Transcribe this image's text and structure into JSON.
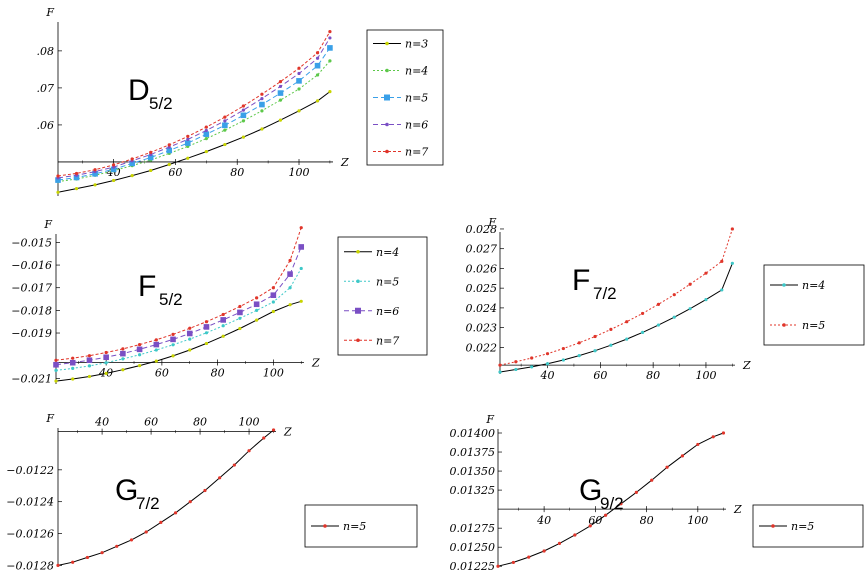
{
  "chart_data": [
    {
      "type": "line",
      "id": "d52",
      "panel_label": "D",
      "panel_sub": "5/2",
      "xlabel": "Z",
      "ylabel": "F",
      "xlim": [
        22,
        111
      ],
      "ylim": [
        0.0408,
        0.0905
      ],
      "baseline": 0.05,
      "x_ticks": [
        40,
        60,
        80,
        100
      ],
      "y_ticks": [
        0.06,
        0.07,
        0.08
      ],
      "y_tick_labels": [
        ".06",
        ".07",
        ".08"
      ],
      "x": [
        22,
        28,
        34,
        40,
        46,
        52,
        58,
        64,
        70,
        76,
        82,
        88,
        94,
        100,
        106,
        110
      ],
      "series": [
        {
          "name": "n=3",
          "color": "#000000",
          "marker_color": "#c8d400",
          "dash": "",
          "marker": "dot",
          "values": [
            0.0418,
            0.0428,
            0.0438,
            0.045,
            0.0463,
            0.0477,
            0.0493,
            0.051,
            0.0528,
            0.0547,
            0.0567,
            0.0589,
            0.0613,
            0.0638,
            0.0665,
            0.069
          ]
        },
        {
          "name": "n=4",
          "color": "#5dc84a",
          "marker_color": "#5dc84a",
          "dash": "2,2",
          "marker": "dot",
          "values": [
            0.0447,
            0.0454,
            0.0464,
            0.0476,
            0.049,
            0.0505,
            0.0523,
            0.0542,
            0.0563,
            0.0586,
            0.0611,
            0.0638,
            0.0667,
            0.0697,
            0.0735,
            0.0773
          ]
        },
        {
          "name": "n=5",
          "color": "#3aa0e8",
          "marker_color": "#3aa0e8",
          "dash": "5,3",
          "marker": "square",
          "values": [
            0.0451,
            0.0458,
            0.0468,
            0.048,
            0.0496,
            0.0512,
            0.0531,
            0.0551,
            0.0575,
            0.0599,
            0.0626,
            0.0655,
            0.0686,
            0.0719,
            0.076,
            0.0808
          ]
        },
        {
          "name": "n=6",
          "color": "#7a4fc4",
          "marker_color": "#7a4fc4",
          "dash": "5,3",
          "marker": "dot",
          "values": [
            0.0457,
            0.0464,
            0.0474,
            0.0486,
            0.0503,
            0.052,
            0.054,
            0.0561,
            0.0585,
            0.0611,
            0.064,
            0.0671,
            0.0704,
            0.0739,
            0.078,
            0.0835
          ]
        },
        {
          "name": "n=7",
          "color": "#e0352a",
          "marker_color": "#e0352a",
          "dash": "3,2",
          "marker": "dot",
          "values": [
            0.0462,
            0.0469,
            0.0479,
            0.0492,
            0.0508,
            0.0526,
            0.0546,
            0.0569,
            0.0594,
            0.0621,
            0.0651,
            0.0683,
            0.0717,
            0.0753,
            0.0795,
            0.0852
          ]
        }
      ]
    },
    {
      "type": "line",
      "id": "f52",
      "panel_label": "F",
      "panel_sub": "5/2",
      "xlabel": "Z",
      "ylabel": "F",
      "xlim": [
        22,
        111
      ],
      "ylim": [
        -0.02125,
        -0.01432
      ],
      "baseline": -0.0203,
      "x_ticks": [
        40,
        60,
        80,
        100
      ],
      "y_ticks": [
        -0.021,
        -0.019,
        -0.018,
        -0.017,
        -0.016,
        -0.015
      ],
      "y_tick_labels": [
        "−0.021",
        "−0.019",
        "−0.018",
        "−0.017",
        "−0.016",
        "−0.015"
      ],
      "x": [
        22,
        28,
        34,
        40,
        46,
        52,
        58,
        64,
        70,
        76,
        82,
        88,
        94,
        100,
        106,
        110
      ],
      "series": [
        {
          "name": "n=4",
          "color": "#000000",
          "marker_color": "#c8d400",
          "dash": "",
          "marker": "dot",
          "values": [
            -0.02112,
            -0.02103,
            -0.02092,
            -0.02078,
            -0.02062,
            -0.02044,
            -0.02024,
            -0.02001,
            -0.01975,
            -0.01946,
            -0.01914,
            -0.0188,
            -0.01843,
            -0.01805,
            -0.01775,
            -0.0176
          ]
        },
        {
          "name": "n=5",
          "color": "#3ec8c8",
          "marker_color": "#3ec8c8",
          "dash": "2,2",
          "marker": "dot",
          "values": [
            -0.02065,
            -0.02056,
            -0.02045,
            -0.02031,
            -0.02014,
            -0.01996,
            -0.01975,
            -0.01952,
            -0.01927,
            -0.01899,
            -0.01868,
            -0.01835,
            -0.018,
            -0.01763,
            -0.017,
            -0.01615
          ]
        },
        {
          "name": "n=6",
          "color": "#7a4fc4",
          "marker_color": "#7a4fc4",
          "dash": "5,3",
          "marker": "square",
          "values": [
            -0.0204,
            -0.02031,
            -0.0202,
            -0.02007,
            -0.01991,
            -0.01972,
            -0.01951,
            -0.01928,
            -0.01902,
            -0.01873,
            -0.01842,
            -0.01809,
            -0.01773,
            -0.01733,
            -0.0164,
            -0.0152
          ]
        },
        {
          "name": "n=7",
          "color": "#e0352a",
          "marker_color": "#e0352a",
          "dash": "3,2",
          "marker": "dot",
          "values": [
            -0.0202,
            -0.02011,
            -0.02,
            -0.01986,
            -0.0197,
            -0.01951,
            -0.0193,
            -0.01906,
            -0.01879,
            -0.0185,
            -0.01818,
            -0.01783,
            -0.01745,
            -0.017,
            -0.0158,
            -0.01435
          ]
        }
      ]
    },
    {
      "type": "line",
      "id": "f72",
      "panel_label": "F",
      "panel_sub": "7/2",
      "xlabel": "Z",
      "ylabel": "F",
      "xlim": [
        22,
        111
      ],
      "ylim": [
        0.02065,
        0.02815
      ],
      "baseline": 0.0211,
      "x_ticks": [
        40,
        60,
        80,
        100
      ],
      "y_ticks": [
        0.022,
        0.023,
        0.024,
        0.025,
        0.026,
        0.027,
        0.028
      ],
      "y_tick_labels": [
        "0.022",
        "0.023",
        "0.024",
        "0.025",
        "0.026",
        "0.027",
        "0.028"
      ],
      "x": [
        22,
        28,
        34,
        40,
        46,
        52,
        58,
        64,
        70,
        76,
        82,
        88,
        94,
        100,
        106,
        110
      ],
      "series": [
        {
          "name": "n=4",
          "color": "#000000",
          "marker_color": "#3ec8c8",
          "dash": "",
          "marker": "dot",
          "values": [
            0.02075,
            0.02088,
            0.02101,
            0.02117,
            0.02136,
            0.02158,
            0.02183,
            0.02211,
            0.02242,
            0.02276,
            0.02313,
            0.02353,
            0.02396,
            0.02442,
            0.02491,
            0.02626
          ]
        },
        {
          "name": "n=5",
          "color": "#e0352a",
          "marker_color": "#e0352a",
          "dash": "2,2",
          "marker": "dot",
          "values": [
            0.0211,
            0.02127,
            0.02146,
            0.02168,
            0.02194,
            0.02223,
            0.02255,
            0.02291,
            0.0233,
            0.02372,
            0.02418,
            0.02467,
            0.0252,
            0.02576,
            0.02636,
            0.028
          ]
        }
      ]
    },
    {
      "type": "line",
      "id": "g72",
      "panel_label": "G",
      "panel_sub": "7/2",
      "xlabel": "Z",
      "ylabel": "F",
      "xlim": [
        22,
        111
      ],
      "ylim": [
        -0.01281,
        -0.01195
      ],
      "baseline": -0.01196,
      "x_ticks": [
        40,
        60,
        80,
        100
      ],
      "y_ticks": [
        -0.0128,
        -0.0126,
        -0.0124,
        -0.0122
      ],
      "y_tick_labels": [
        "−0.0128",
        "−0.0126",
        "−0.0124",
        "−0.0122"
      ],
      "x": [
        22,
        28,
        34,
        40,
        46,
        52,
        58,
        64,
        70,
        76,
        82,
        88,
        94,
        100,
        106,
        110
      ],
      "series": [
        {
          "name": "n=5",
          "color": "#000000",
          "marker_color": "#e0352a",
          "dash": "",
          "marker": "dot",
          "values": [
            -0.0128,
            -0.01278,
            -0.01275,
            -0.01272,
            -0.01268,
            -0.01264,
            -0.01259,
            -0.01253,
            -0.01247,
            -0.0124,
            -0.01233,
            -0.01225,
            -0.01217,
            -0.01208,
            -0.012,
            -0.01195
          ]
        }
      ]
    },
    {
      "type": "line",
      "id": "g92",
      "panel_label": "G",
      "panel_sub": "9/2",
      "xlabel": "Z",
      "ylabel": "F",
      "xlim": [
        22,
        111
      ],
      "ylim": [
        0.01224,
        0.014
      ],
      "baseline": 0.013,
      "x_ticks": [
        40,
        60,
        80,
        100
      ],
      "y_ticks": [
        0.01225,
        0.0125,
        0.01275,
        0.01325,
        0.0135,
        0.01375,
        0.014
      ],
      "y_tick_labels": [
        "0.01225",
        "0.01250",
        "0.01275",
        "0.01325",
        "0.01350",
        "0.01375",
        "0.01400"
      ],
      "x": [
        22,
        28,
        34,
        40,
        46,
        52,
        58,
        64,
        70,
        76,
        82,
        88,
        94,
        100,
        106,
        110
      ],
      "series": [
        {
          "name": "n=5",
          "color": "#000000",
          "marker_color": "#e0352a",
          "dash": "",
          "marker": "dot",
          "values": [
            0.01225,
            0.0123,
            0.01237,
            0.01245,
            0.01255,
            0.01266,
            0.01278,
            0.01292,
            0.01307,
            0.01322,
            0.01338,
            0.01355,
            0.0137,
            0.01385,
            0.01395,
            0.014
          ]
        }
      ]
    }
  ]
}
